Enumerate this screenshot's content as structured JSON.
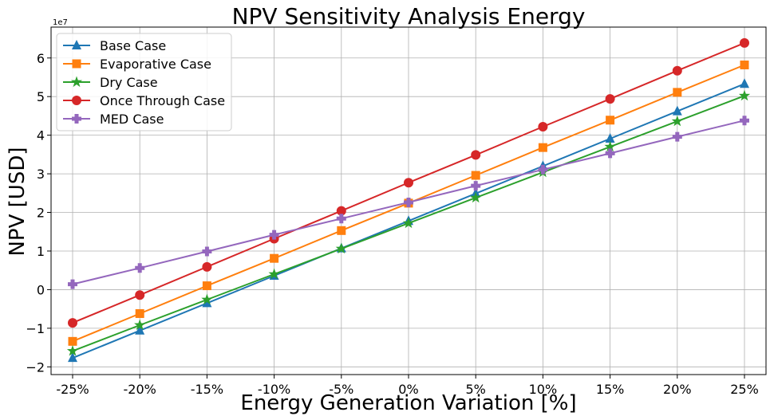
{
  "chart_data": {
    "type": "line",
    "title": "NPV Sensitivity Analysis Energy",
    "xlabel": "Energy Generation Variation [%]",
    "ylabel": "NPV [USD]",
    "y_offset_label": "1e7",
    "categories": [
      "-25%",
      "-20%",
      "-15%",
      "-10%",
      "-5%",
      "0%",
      "5%",
      "10%",
      "15%",
      "20%",
      "25%"
    ],
    "ylim": [
      -2.2,
      6.8
    ],
    "yticks": [
      -2,
      -1,
      0,
      1,
      2,
      3,
      4,
      5,
      6
    ],
    "ytick_labels": [
      "−2",
      "−1",
      "0",
      "1",
      "2",
      "3",
      "4",
      "5",
      "6"
    ],
    "y_unit_multiplier": 10000000,
    "grid": true,
    "legend_position": "top-left",
    "series": [
      {
        "name": "Base Case",
        "color": "#1f77b4",
        "marker": "triangle",
        "values": [
          -1.77,
          -1.06,
          -0.35,
          0.36,
          1.07,
          1.78,
          2.49,
          3.2,
          3.91,
          4.62,
          5.33
        ]
      },
      {
        "name": "Evaporative Case",
        "color": "#ff7f0e",
        "marker": "square",
        "values": [
          -1.34,
          -0.62,
          0.1,
          0.81,
          1.53,
          2.24,
          2.96,
          3.68,
          4.39,
          5.11,
          5.82
        ]
      },
      {
        "name": "Dry Case",
        "color": "#2ca02c",
        "marker": "star",
        "values": [
          -1.59,
          -0.92,
          -0.26,
          0.4,
          1.06,
          1.72,
          2.38,
          3.04,
          3.7,
          4.36,
          5.02
        ]
      },
      {
        "name": "Once Through Case",
        "color": "#d62728",
        "marker": "circle",
        "values": [
          -0.86,
          -0.14,
          0.59,
          1.32,
          2.04,
          2.77,
          3.49,
          4.22,
          4.94,
          5.67,
          6.39
        ]
      },
      {
        "name": "MED Case",
        "color": "#9467bd",
        "marker": "plus",
        "values": [
          0.14,
          0.56,
          0.99,
          1.42,
          1.84,
          2.26,
          2.69,
          3.11,
          3.53,
          3.96,
          4.38
        ]
      }
    ]
  }
}
